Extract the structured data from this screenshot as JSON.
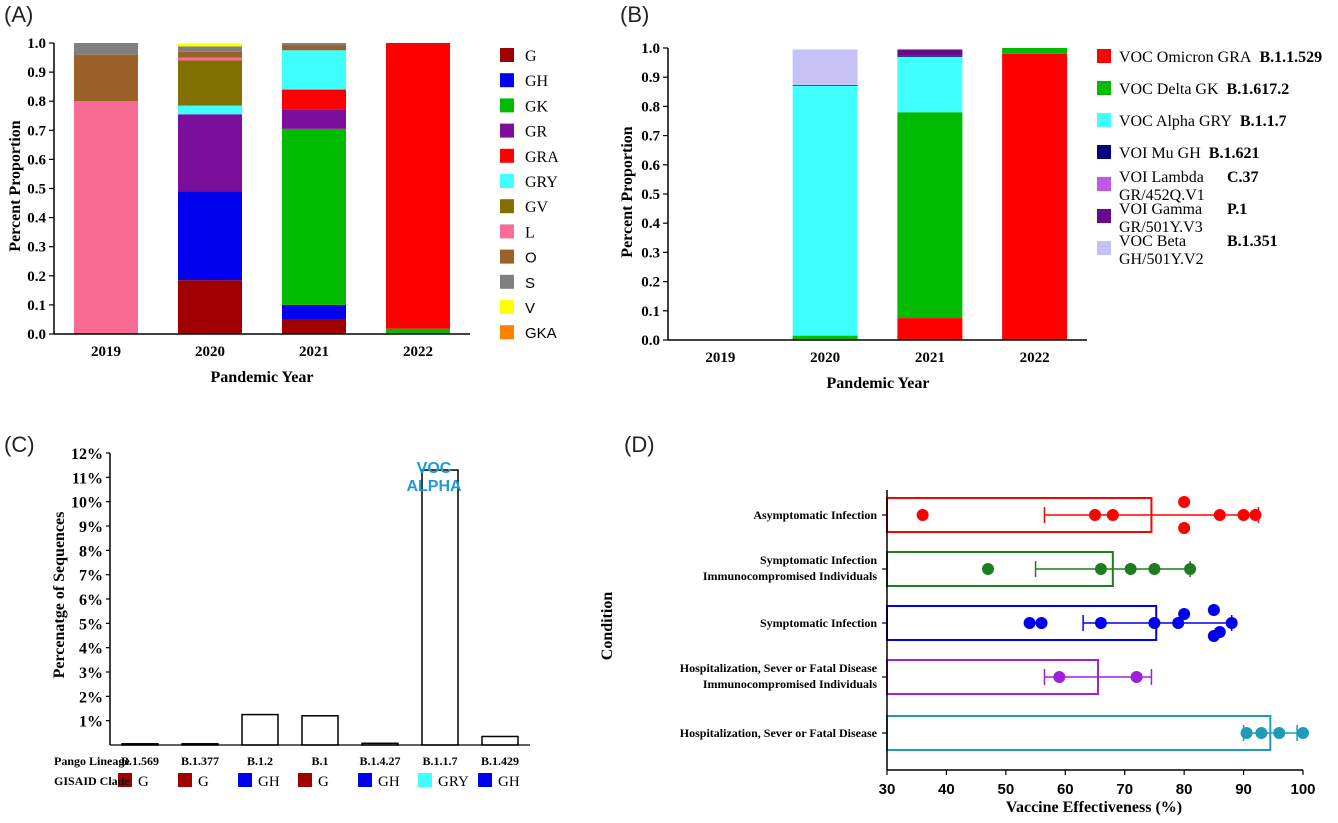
{
  "panels": {
    "a": "(A)",
    "b": "(B)",
    "c": "(C)",
    "d": "(D)"
  },
  "chart_data": [
    {
      "id": "A",
      "type": "bar",
      "stacked": true,
      "categories": [
        "2019",
        "2020",
        "2021",
        "2022"
      ],
      "xlabel": "Pandemic Year",
      "ylabel": "Percent Proportion",
      "ylim": [
        0,
        1.0
      ],
      "yticks": [
        "0.0",
        "0.1",
        "0.2",
        "0.3",
        "0.4",
        "0.5",
        "0.6",
        "0.7",
        "0.8",
        "0.9",
        "1.0"
      ],
      "legend_position": "right",
      "series": [
        {
          "name": "G",
          "color": "#a00000",
          "values": [
            0,
            0.185,
            0.05,
            0
          ]
        },
        {
          "name": "GH",
          "color": "#0000ee",
          "values": [
            0,
            0.305,
            0.05,
            0
          ]
        },
        {
          "name": "GK",
          "color": "#00bb00",
          "values": [
            0,
            0,
            0.605,
            0.018
          ]
        },
        {
          "name": "GR",
          "color": "#7b0e9a",
          "values": [
            0,
            0.265,
            0.065,
            0
          ]
        },
        {
          "name": "GRA",
          "color": "#ff0000",
          "values": [
            0,
            0,
            0.07,
            0.982
          ]
        },
        {
          "name": "GRY",
          "color": "#40ffff",
          "values": [
            0,
            0.03,
            0.135,
            0
          ]
        },
        {
          "name": "GV",
          "color": "#807000",
          "values": [
            0,
            0.155,
            0,
            0
          ]
        },
        {
          "name": "L",
          "color": "#f76b95",
          "values": [
            0.8,
            0.01,
            0,
            0
          ]
        },
        {
          "name": "O",
          "color": "#9a6229",
          "values": [
            0.16,
            0.02,
            0.018,
            0
          ]
        },
        {
          "name": "S",
          "color": "#808080",
          "values": [
            0.04,
            0.018,
            0.007,
            0
          ]
        },
        {
          "name": "V",
          "color": "#ffff00",
          "values": [
            0,
            0.01,
            0,
            0
          ]
        },
        {
          "name": "GKA",
          "color": "#ff8000",
          "values": [
            0,
            0,
            0,
            0
          ]
        }
      ]
    },
    {
      "id": "B",
      "type": "bar",
      "stacked": true,
      "categories": [
        "2019",
        "2020",
        "2021",
        "2022"
      ],
      "xlabel": "Pandemic Year",
      "ylabel": "Percent Proportion",
      "ylim": [
        0,
        1.0
      ],
      "yticks": [
        "0.0",
        "0.1",
        "0.2",
        "0.3",
        "0.4",
        "0.5",
        "0.6",
        "0.7",
        "0.8",
        "0.9",
        "1.0"
      ],
      "legend_position": "right",
      "series": [
        {
          "name": "VOC Omicron GRA",
          "code": "B.1.1.529",
          "color": "#ff0000",
          "values": [
            0,
            0,
            0.075,
            0.98
          ]
        },
        {
          "name": "VOC Delta GK",
          "code": "B.1.617.2",
          "color": "#00bb00",
          "values": [
            0,
            0.015,
            0.705,
            0.02
          ]
        },
        {
          "name": "VOC Alpha GRY",
          "code": "B.1.1.7",
          "color": "#40ffff",
          "values": [
            0,
            0.855,
            0.19,
            0
          ]
        },
        {
          "name": "VOI Mu GH",
          "code": "B.1.621",
          "color": "#000080",
          "values": [
            0,
            0,
            0.003,
            0
          ]
        },
        {
          "name": "VOI Lambda",
          "name2": "GR/452Q.V1",
          "code": "C.37",
          "color": "#c158e8",
          "values": [
            0,
            0,
            0,
            0
          ]
        },
        {
          "name": "VOI Gamma",
          "name2": "GR/501Y.V3",
          "code": "P.1",
          "color": "#6a0a8c",
          "values": [
            0,
            0.003,
            0.022,
            0
          ]
        },
        {
          "name": "VOC Beta",
          "name2": "GH/501Y.V2",
          "code": "B.1.351",
          "color": "#c7c2f5",
          "values": [
            0,
            0.122,
            0,
            0
          ]
        }
      ]
    },
    {
      "id": "C",
      "type": "bar",
      "categories": [
        "B.1.569",
        "B.1.377",
        "B.1.2",
        "B.1",
        "B.1.4.27",
        "B.1.1.7",
        "B.1.429"
      ],
      "clades": [
        "G",
        "G",
        "GH",
        "G",
        "GH",
        "GRY",
        "GH"
      ],
      "clade_colors": [
        "#a00000",
        "#a00000",
        "#0000ee",
        "#a00000",
        "#0000ee",
        "#40ffff",
        "#0000ee"
      ],
      "values": [
        0.05,
        0.05,
        1.25,
        1.2,
        0.07,
        11.3,
        0.35
      ],
      "ylabel": "Percenatge of Sequences",
      "ylim": [
        0,
        12
      ],
      "yticks": [
        "1%",
        "2%",
        "3%",
        "4%",
        "5%",
        "6%",
        "7%",
        "8%",
        "9%",
        "10%",
        "11%",
        "12%"
      ],
      "row_label_lineage": "Pango Lineage",
      "row_label_clade": "GISAID Clade",
      "annotation": {
        "line1": "VOC",
        "line2": "ALPHA",
        "color": "#1e9bd7"
      }
    },
    {
      "id": "D",
      "type": "bar",
      "orientation": "horizontal",
      "xlabel": "Vaccine Effectiveness (%)",
      "ylabel": "Condition",
      "xlim": [
        30,
        100
      ],
      "xticks": [
        "30",
        "40",
        "50",
        "60",
        "70",
        "80",
        "90",
        "100"
      ],
      "categories": [
        {
          "line1": "Asymptomatic Infection",
          "line2": "",
          "color": "#ff0000",
          "mean": 74.5,
          "err": [
            56.5,
            92.5
          ],
          "points": [
            36,
            65,
            68,
            80,
            80,
            86,
            90,
            92
          ]
        },
        {
          "line1": "Symptomatic Infection",
          "line2": "Immunocompromised Individuals",
          "color": "#1e7d1e",
          "mean": 68,
          "err": [
            55,
            81
          ],
          "points": [
            47,
            66,
            71,
            75,
            81
          ]
        },
        {
          "line1": "Symptomatic Infection",
          "line2": "",
          "color": "#0000ee",
          "mean": 75.3,
          "err": [
            63,
            88
          ],
          "points": [
            54,
            56,
            66,
            75,
            79,
            80,
            85,
            85,
            86,
            88
          ]
        },
        {
          "line1": "Hospitalization, Sever or Fatal Disease",
          "line2": "Immunocompromised Individuals",
          "color": "#a020e0",
          "mean": 65.5,
          "err": [
            56.5,
            74.5
          ],
          "points": [
            59,
            72
          ]
        },
        {
          "line1": "Hospitalization, Sever or Fatal Disease",
          "line2": "",
          "color": "#1e9bb5",
          "mean": 94.5,
          "err": [
            90,
            99
          ],
          "points": [
            90.5,
            93,
            96,
            100
          ]
        }
      ]
    }
  ]
}
